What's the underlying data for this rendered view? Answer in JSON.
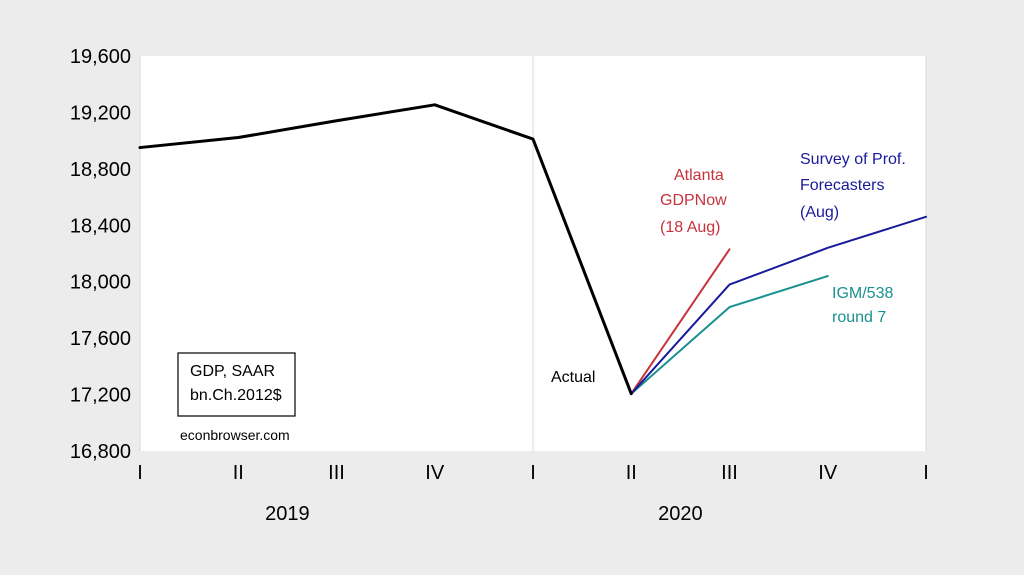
{
  "chart_data": {
    "type": "line",
    "ylim": [
      16800,
      19600
    ],
    "yticks": [
      16800,
      17200,
      17600,
      18000,
      18400,
      18800,
      19200,
      19600
    ],
    "ytick_labels": [
      "16,800",
      "17,200",
      "17,600",
      "18,000",
      "18,400",
      "18,800",
      "19,200",
      "19,600"
    ],
    "quarters": [
      "I",
      "II",
      "III",
      "IV",
      "I",
      "II",
      "III",
      "IV",
      "I"
    ],
    "years": [
      "2019",
      "2020"
    ],
    "grid": "vertical",
    "series": [
      {
        "name": "Actual",
        "color": "#000000",
        "x": [
          0,
          1,
          2,
          3,
          4,
          5
        ],
        "values": [
          18951,
          19022,
          19141,
          19254,
          19011,
          17206
        ]
      },
      {
        "name": "Atlanta GDPNow (18 Aug)",
        "color": "#c8323c",
        "x": [
          5,
          6
        ],
        "values": [
          17206,
          18230
        ]
      },
      {
        "name": "Survey of Prof. Forecasters (Aug)",
        "color": "#1a1a9c",
        "x": [
          5,
          6,
          7,
          8
        ],
        "values": [
          17206,
          17980,
          18240,
          18460
        ]
      },
      {
        "name": "IGM/538 round 7",
        "color": "#1a9090",
        "x": [
          5,
          6,
          7
        ],
        "values": [
          17206,
          17820,
          18040
        ]
      }
    ],
    "annotations": {
      "actual": "Actual",
      "atlanta": [
        "Atlanta",
        "GDPNow",
        "(18 Aug)"
      ],
      "spf": [
        "Survey of Prof.",
        "Forecasters",
        "(Aug)"
      ],
      "igm": [
        "IGM/538",
        "round 7"
      ]
    },
    "legend_box": [
      "GDP, SAAR",
      "bn.Ch.2012$"
    ],
    "source": "econbrowser.com"
  }
}
